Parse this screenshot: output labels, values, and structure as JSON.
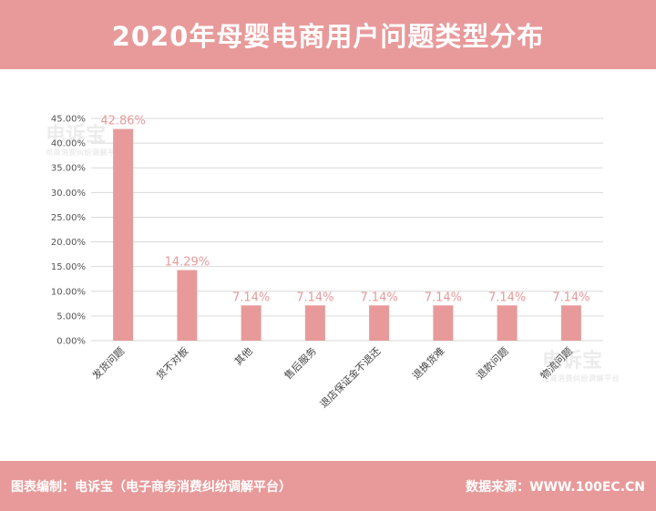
{
  "header": {
    "title": "2020年母婴电商用户问题类型分布"
  },
  "watermark": {
    "brand": "电诉宝",
    "subtitle": "电商消费纠纷调解平台"
  },
  "footer": {
    "source_left": "图表编制：电诉宝（电子商务消费纠纷调解平台）",
    "source_right": "数据来源：WWW.100EC.CN"
  },
  "colors": {
    "banner": "#e89a9a",
    "bar": "#e89a9a",
    "label": "#e89a9a",
    "grid": "#d9d9d9"
  },
  "chart_data": {
    "type": "bar",
    "categories": [
      "发货问题",
      "货不对板",
      "其他",
      "售后服务",
      "退店保证金不退还",
      "退换货难",
      "退款问题",
      "物流问题"
    ],
    "values": [
      42.86,
      14.29,
      7.14,
      7.14,
      7.14,
      7.14,
      7.14,
      7.14
    ],
    "data_labels": [
      "42.86%",
      "14.29%",
      "7.14%",
      "7.14%",
      "7.14%",
      "7.14%",
      "7.14%",
      "7.14%"
    ],
    "yticks": [
      "0.00%",
      "5.00%",
      "10.00%",
      "15.00%",
      "20.00%",
      "25.00%",
      "30.00%",
      "35.00%",
      "40.00%",
      "45.00%"
    ],
    "ylim": [
      0,
      45
    ],
    "grid": true,
    "legend": "none"
  }
}
